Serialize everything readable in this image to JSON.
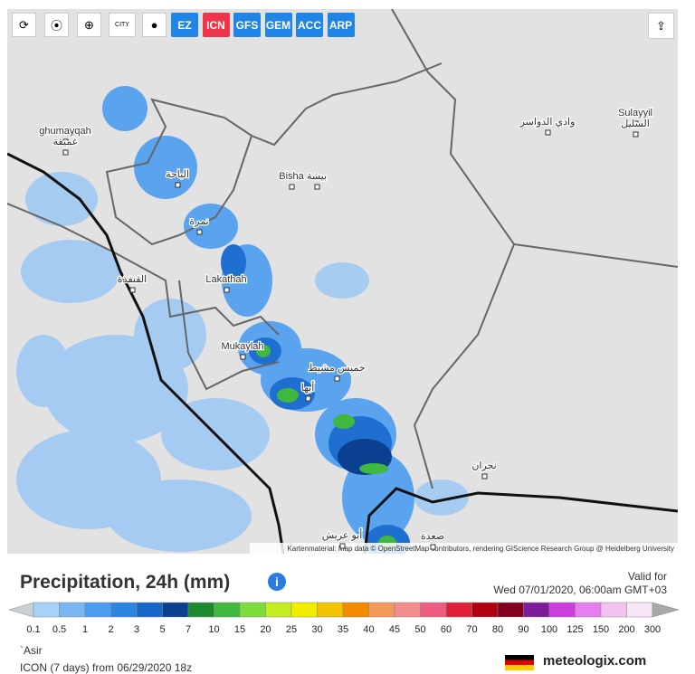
{
  "toolbar": {
    "city": "CITY",
    "models": [
      "EZ",
      "ICN",
      "GFS",
      "GEM",
      "ACC",
      "ARP"
    ],
    "active_model": 1
  },
  "map": {
    "places": [
      "ghumayqah",
      "غميقة",
      "وادي الدواسر",
      "Sulayyil",
      "السليل",
      "الباحة",
      "Bisha",
      "بيشة",
      "نمرة",
      "القنفذة",
      "Lakathah",
      "Mukaylah",
      "خميس مشيط",
      "أبها",
      "نجران",
      "أبو عريش",
      "صعدة"
    ],
    "attribution": "Kartenmaterial: Map data © OpenStreetMap contributors, rendering GIScience Research Group @ Heidelberg University"
  },
  "legend": {
    "title": "Precipitation, 24h (mm)",
    "valid_label": "Valid for",
    "valid_time": "Wed 07/01/2020, 06:00am GMT+03",
    "labels": [
      0.1,
      0.5,
      1,
      2,
      3,
      5,
      7,
      10,
      15,
      20,
      25,
      30,
      35,
      40,
      45,
      50,
      60,
      70,
      80,
      90,
      100,
      125,
      150,
      200,
      300
    ],
    "colors": [
      "#a9d2fa",
      "#78b6f4",
      "#4a9def",
      "#2c84e1",
      "#1766c8",
      "#0b3f8f",
      "#1c8a2c",
      "#41b83e",
      "#7ddd3d",
      "#c5ee22",
      "#f2ee00",
      "#f5c400",
      "#f38a00",
      "#f39a5a",
      "#f38c8c",
      "#ee5c80",
      "#e01f3a",
      "#b00010",
      "#80001e",
      "#7c1e9c",
      "#cc3fdc",
      "#e67ef0",
      "#f3c2f0",
      "#f7e6f7"
    ],
    "under_color": "#c9d0d6",
    "over_color": "#a8a8a8"
  },
  "footer": {
    "region": "`Asir",
    "model_run": "ICON (7 days) from 06/29/2020 18z",
    "brand": "meteologix.com"
  }
}
